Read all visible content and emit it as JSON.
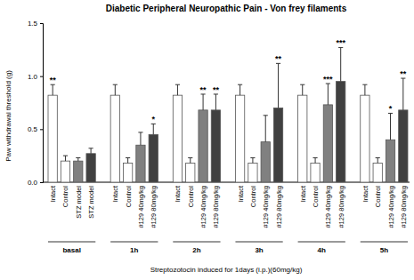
{
  "chart_data": {
    "type": "bar",
    "title": "Diabetic Peripheral Neuropathic Pain - Von frey filaments",
    "y_label": "Paw withdrawal threshold (g)",
    "x_label": "Streptozotocin induced for 1days (i.p.)(60mg/kg)",
    "groups": [
      "basal",
      "1h",
      "2h",
      "3h",
      "4h",
      "5h"
    ],
    "categories": [
      "Intact",
      "Control",
      "STZ model",
      "STZ model",
      "Intact",
      "Control",
      "#129 40mg/kg",
      "#129 80mg/kg",
      "Intact",
      "Control",
      "#129 40mg/kg",
      "#129 80mg/kg",
      "Intact",
      "Control",
      "#129 40mg/kg",
      "#129 80mg/kg",
      "Intact",
      "Control",
      "#129 40mg/kg",
      "#129 80mg/kg",
      "Intact",
      "Control",
      "#129 40mg/kg",
      "#129 80mg/kg"
    ],
    "values": [
      0.82,
      0.2,
      0.2,
      0.27,
      0.82,
      0.18,
      0.35,
      0.45,
      0.82,
      0.18,
      0.68,
      0.68,
      0.82,
      0.18,
      0.38,
      0.7,
      0.82,
      0.18,
      0.73,
      0.95,
      0.82,
      0.18,
      0.4,
      0.68
    ],
    "errors": [
      0.1,
      0.05,
      0.03,
      0.05,
      0.1,
      0.05,
      0.12,
      0.1,
      0.1,
      0.05,
      0.15,
      0.15,
      0.1,
      0.05,
      0.25,
      0.42,
      0.1,
      0.05,
      0.2,
      0.32,
      0.1,
      0.05,
      0.25,
      0.3
    ],
    "annotations": [
      "**",
      null,
      null,
      null,
      null,
      null,
      null,
      "*",
      null,
      null,
      "**",
      "**",
      null,
      null,
      null,
      "**",
      null,
      null,
      "***",
      "***",
      null,
      null,
      "*",
      "**"
    ],
    "colors": [
      "#ffffff",
      "#ffffff",
      "#808080",
      "#404040",
      "#ffffff",
      "#ffffff",
      "#808080",
      "#404040",
      "#ffffff",
      "#ffffff",
      "#808080",
      "#404040",
      "#ffffff",
      "#ffffff",
      "#808080",
      "#404040",
      "#ffffff",
      "#ffffff",
      "#808080",
      "#404040",
      "#ffffff",
      "#ffffff",
      "#808080",
      "#404040"
    ],
    "ylim": [
      0,
      1.5
    ],
    "yticks": [
      {
        "value": 0,
        "label": "0.0"
      },
      0.5,
      {
        "value": 1,
        "label": "1.0"
      },
      1.5
    ]
  }
}
